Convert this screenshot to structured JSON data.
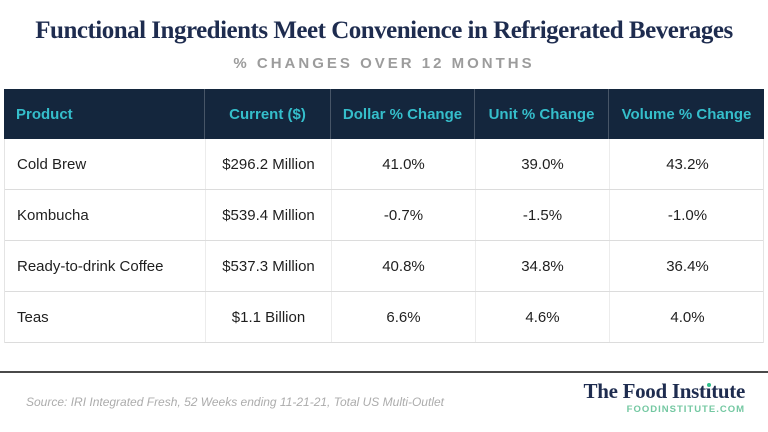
{
  "header": {
    "title": "Functional Ingredients Meet Convenience in Refrigerated Beverages",
    "subtitle": "% CHANGES OVER 12 MONTHS"
  },
  "table": {
    "columns": [
      "Product",
      "Current ($)",
      "Dollar % Change",
      "Unit % Change",
      "Volume % Change"
    ],
    "rows": [
      {
        "product": "Cold Brew",
        "current": "$296.2 Million",
        "dollar": "41.0%",
        "unit": "39.0%",
        "volume": "43.2%"
      },
      {
        "product": "Kombucha",
        "current": "$539.4 Million",
        "dollar": "-0.7%",
        "unit": "-1.5%",
        "volume": "-1.0%"
      },
      {
        "product": "Ready-to-drink Coffee",
        "current": "$537.3 Million",
        "dollar": "40.8%",
        "unit": "34.8%",
        "volume": "36.4%"
      },
      {
        "product": "Teas",
        "current": "$1.1 Billion",
        "dollar": "6.6%",
        "unit": "4.6%",
        "volume": "4.0%"
      }
    ]
  },
  "footer": {
    "source": "Source: IRI Integrated Fresh, 52 Weeks ending 11-21-21, Total US Multi-Outlet",
    "logo": {
      "name_pre": "The Food Inst",
      "name_i": "ı",
      "name_post": "tute",
      "domain": "FOODINSTITUTE.COM"
    }
  },
  "colors": {
    "navy": "#1E2C4F",
    "table_header_bg": "#14263D",
    "table_header_text": "#35BECB",
    "accent_green_dot": "#2FBE8A",
    "domain_green": "#74C8A2",
    "subtitle_gray": "#9C9C9C"
  },
  "chart_data": {
    "type": "table",
    "title": "Functional Ingredients Meet Convenience in Refrigerated Beverages",
    "subtitle": "% CHANGES OVER 12 MONTHS",
    "columns": [
      "Product",
      "Current ($)",
      "Dollar % Change",
      "Unit % Change",
      "Volume % Change"
    ],
    "rows": [
      [
        "Cold Brew",
        "$296.2 Million",
        41.0,
        39.0,
        43.2
      ],
      [
        "Kombucha",
        "$539.4 Million",
        -0.7,
        -1.5,
        -1.0
      ],
      [
        "Ready-to-drink Coffee",
        "$537.3 Million",
        40.8,
        34.8,
        36.4
      ],
      [
        "Teas",
        "$1.1 Billion",
        6.6,
        4.6,
        4.0
      ]
    ],
    "source": "Source: IRI Integrated Fresh, 52 Weeks ending 11-21-21, Total US Multi-Outlet"
  }
}
